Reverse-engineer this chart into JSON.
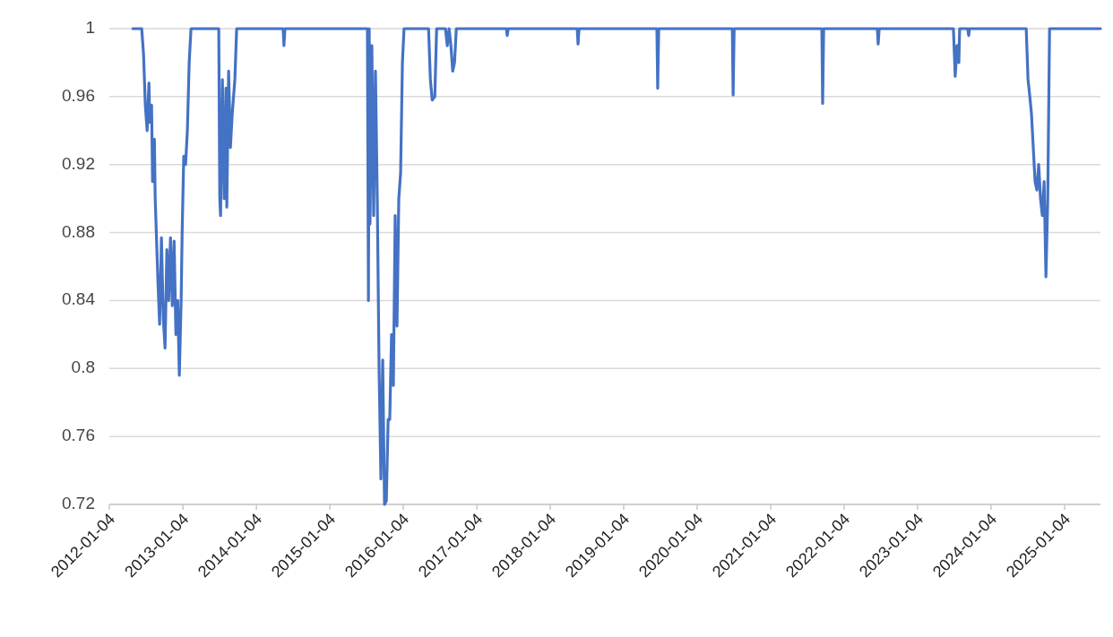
{
  "chart_data": {
    "type": "line",
    "x": [
      "2012-04-30",
      "2012-06-13",
      "2012-06-22",
      "2012-07-01",
      "2012-07-10",
      "2012-07-19",
      "2012-07-23",
      "2012-08-01",
      "2012-08-06",
      "2012-08-15",
      "2012-08-19",
      "2012-09-02",
      "2012-09-10",
      "2012-09-19",
      "2012-09-28",
      "2012-10-07",
      "2012-10-16",
      "2012-10-25",
      "2012-11-03",
      "2012-11-12",
      "2012-11-21",
      "2012-11-30",
      "2012-12-09",
      "2012-12-17",
      "2012-12-26",
      "2012-12-31",
      "2013-01-08",
      "2013-01-17",
      "2013-01-26",
      "2013-02-04",
      "2013-02-13",
      "2013-07-01",
      "2013-07-06",
      "2013-07-10",
      "2013-07-19",
      "2013-07-28",
      "2013-08-06",
      "2013-08-10",
      "2013-08-19",
      "2013-08-28",
      "2013-09-06",
      "2013-09-19",
      "2013-09-28",
      "2014-05-17",
      "2014-05-21",
      "2014-05-26",
      "2015-07-10",
      "2015-07-15",
      "2015-07-19",
      "2015-07-23",
      "2015-08-01",
      "2015-08-10",
      "2015-08-19",
      "2015-08-28",
      "2015-09-06",
      "2015-09-15",
      "2015-09-24",
      "2015-10-03",
      "2015-10-12",
      "2015-10-21",
      "2015-10-29",
      "2015-11-07",
      "2015-11-16",
      "2015-11-25",
      "2015-12-04",
      "2015-12-13",
      "2015-12-22",
      "2015-12-31",
      "2016-01-08",
      "2016-05-09",
      "2016-05-18",
      "2016-05-27",
      "2016-06-09",
      "2016-06-18",
      "2016-08-01",
      "2016-08-10",
      "2016-08-19",
      "2016-08-28",
      "2016-09-06",
      "2016-09-15",
      "2016-09-24",
      "2017-05-31",
      "2017-06-04",
      "2017-06-09",
      "2018-05-18",
      "2018-05-22",
      "2018-05-27",
      "2019-06-18",
      "2019-06-22",
      "2019-06-27",
      "2020-06-27",
      "2020-07-01",
      "2020-07-06",
      "2021-09-15",
      "2021-09-19",
      "2021-09-24",
      "2022-06-18",
      "2022-06-22",
      "2022-06-27",
      "2023-07-01",
      "2023-07-10",
      "2023-07-19",
      "2023-07-28",
      "2023-08-01",
      "2023-09-10",
      "2023-09-15",
      "2023-09-19",
      "2024-06-27",
      "2024-07-06",
      "2024-07-15",
      "2024-07-23",
      "2024-08-01",
      "2024-08-10",
      "2024-08-19",
      "2024-08-28",
      "2024-09-06",
      "2024-09-15",
      "2024-09-24",
      "2024-10-03",
      "2024-10-12",
      "2024-10-21",
      "2025-07-01"
    ],
    "series": [
      {
        "color": "#4472c4",
        "values": [
          1,
          1,
          0.985,
          0.955,
          0.94,
          0.968,
          0.945,
          0.955,
          0.91,
          0.935,
          0.9,
          0.85,
          0.826,
          0.877,
          0.83,
          0.812,
          0.87,
          0.84,
          0.877,
          0.837,
          0.875,
          0.82,
          0.84,
          0.796,
          0.84,
          0.88,
          0.925,
          0.92,
          0.94,
          0.98,
          1,
          1,
          0.9,
          0.89,
          0.97,
          0.9,
          0.965,
          0.895,
          0.975,
          0.93,
          0.95,
          0.97,
          1,
          1,
          0.99,
          1,
          1,
          0.84,
          1,
          0.885,
          0.99,
          0.89,
          0.975,
          0.9,
          0.8,
          0.735,
          0.805,
          0.72,
          0.722,
          0.77,
          0.77,
          0.82,
          0.79,
          0.89,
          0.825,
          0.9,
          0.915,
          0.98,
          1,
          1,
          0.97,
          0.958,
          0.96,
          1,
          1,
          0.99,
          1,
          0.99,
          0.975,
          0.98,
          1,
          1,
          0.996,
          1,
          1,
          0.991,
          1,
          1,
          0.965,
          1,
          1,
          0.961,
          1,
          1,
          0.956,
          1,
          1,
          0.991,
          1,
          1,
          0.972,
          0.99,
          0.98,
          1,
          1,
          0.996,
          1,
          1,
          0.97,
          0.96,
          0.95,
          0.93,
          0.91,
          0.905,
          0.92,
          0.9,
          0.89,
          0.91,
          0.854,
          0.9,
          1,
          1
        ]
      }
    ],
    "xlim": [
      "2012-01-04",
      "2025-07-01"
    ],
    "xticks": [
      "2012-01-04",
      "2013-01-04",
      "2014-01-04",
      "2015-01-04",
      "2016-01-04",
      "2017-01-04",
      "2018-01-04",
      "2019-01-04",
      "2020-01-04",
      "2021-01-04",
      "2022-01-04",
      "2023-01-04",
      "2024-01-04",
      "2025-01-04"
    ],
    "ylim": [
      0.72,
      1
    ],
    "yticks": [
      0.72,
      0.76,
      0.8,
      0.84,
      0.88,
      0.92,
      0.96,
      1
    ],
    "grid": "y",
    "marker": "none",
    "line_style": "solid"
  }
}
